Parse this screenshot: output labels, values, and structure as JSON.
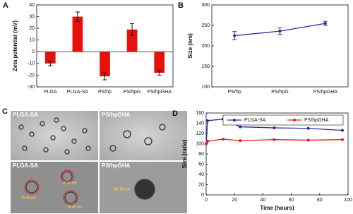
{
  "chart_data": [
    {
      "type": "bar",
      "panel_label": "A",
      "y_label": "Zeta potential (mV)",
      "categories": [
        "PLGA",
        "PLGA-SA",
        "PS/hp",
        "PS/hpG",
        "PS/hpGHA"
      ],
      "values": [
        -10,
        30,
        -21,
        19,
        -18
      ],
      "errors": [
        2,
        4,
        3,
        5,
        2
      ],
      "color": "#e8100c",
      "ylim": [
        -30,
        40
      ],
      "yticks": [
        -30,
        -20,
        -10,
        0,
        10,
        20,
        30,
        40
      ]
    },
    {
      "type": "line",
      "panel_label": "B",
      "y_label": "Size (nm)",
      "categories": [
        "PS/hp",
        "PS/hpG",
        "PS/hpGHA"
      ],
      "values": [
        225,
        236,
        255
      ],
      "errors": [
        10,
        8,
        5
      ],
      "color": "#2b2a9c",
      "ylim": [
        100,
        300
      ],
      "yticks": [
        100,
        150,
        200,
        250,
        300
      ]
    },
    {
      "type": "line",
      "panel_label": "D",
      "y_label": "Size (ratio)",
      "x_label": "Time (hours)",
      "x": [
        0,
        1,
        12,
        24,
        48,
        72,
        96
      ],
      "series": [
        {
          "name": "PLGA-SA",
          "color": "#2b2a9c",
          "values": [
            100,
            145,
            148,
            133,
            131,
            130,
            126
          ]
        },
        {
          "name": "PS/hpGHA",
          "color": "#e02020",
          "values": [
            100,
            105,
            109,
            106,
            108,
            107,
            108
          ]
        }
      ],
      "xlim": [
        0,
        100
      ],
      "xticks": [
        0,
        20,
        40,
        60,
        80,
        100
      ],
      "ylim": [
        0,
        160
      ],
      "yticks": [
        0,
        20,
        40,
        60,
        80,
        100,
        120,
        140,
        160
      ]
    }
  ],
  "panel_c": {
    "panel_label": "C",
    "images": [
      {
        "label": "PLGA-SA"
      },
      {
        "label": "PS/hpGHA"
      },
      {
        "label": "PLGA-SA",
        "annotations": [
          "26.80 nm",
          "24.40 nm",
          "25.05 nm"
        ]
      },
      {
        "label": "PS/hpGHA",
        "annotations": [
          "193.58 nm"
        ]
      }
    ]
  }
}
